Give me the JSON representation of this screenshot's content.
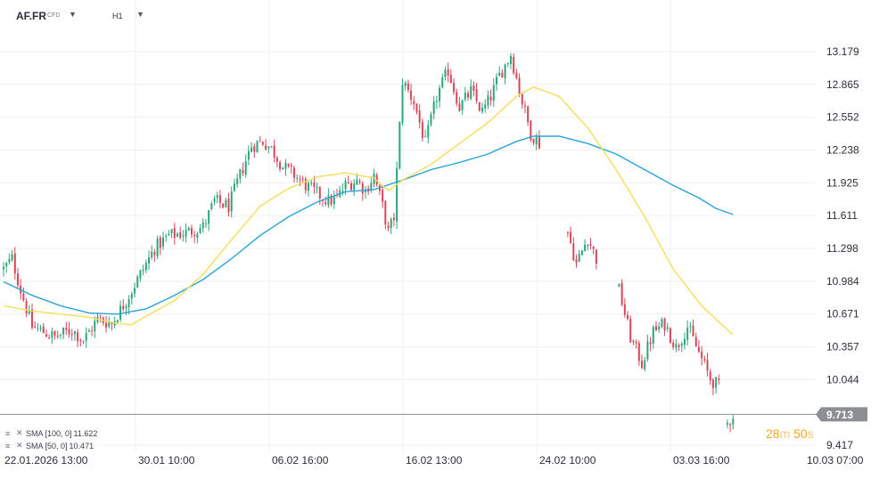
{
  "header": {
    "symbol": "AF.FR",
    "symbol_type": "CFD",
    "timeframe": "H1"
  },
  "indicators": [
    {
      "label": "SMA",
      "params": "[100, 0]",
      "value": "11.622",
      "color": "#2aa4d8"
    },
    {
      "label": "SMA",
      "params": "[50, 0]",
      "value": "10.471",
      "color": "#f5df5a"
    }
  ],
  "countdown": {
    "minutes": "28",
    "m": "m",
    "seconds": "50",
    "s": "s",
    "color": "#f5a623"
  },
  "price_label": {
    "value": "9.713",
    "color": "#8b8f94"
  },
  "colors": {
    "bull": "#2aa77a",
    "bear": "#d9465a",
    "grid": "#eef0f3",
    "axis_text": "#2a2f3a"
  },
  "chart_data": {
    "type": "candlestick",
    "y_ticks": [
      "13.179",
      "12.865",
      "12.552",
      "12.238",
      "11.925",
      "11.611",
      "11.298",
      "10.984",
      "10.671",
      "10.357",
      "10.044",
      "9.417"
    ],
    "x_ticks": [
      "22.01.2026  13:00",
      "30.01  10:00",
      "06.02  16:00",
      "16.02  13:00",
      "24.02  10:00",
      "03.03  16:00",
      "10.03  07:00"
    ],
    "ylim": [
      9.35,
      13.45
    ],
    "current_price": 9.713,
    "grid": true,
    "anchors": [
      {
        "i": 0,
        "p": 11.1
      },
      {
        "i": 3,
        "p": 11.2
      },
      {
        "i": 6,
        "p": 10.9
      },
      {
        "i": 10,
        "p": 10.55
      },
      {
        "i": 18,
        "p": 10.45
      },
      {
        "i": 24,
        "p": 10.52
      },
      {
        "i": 28,
        "p": 10.42
      },
      {
        "i": 33,
        "p": 10.62
      },
      {
        "i": 38,
        "p": 10.58
      },
      {
        "i": 43,
        "p": 10.8
      },
      {
        "i": 48,
        "p": 11.05
      },
      {
        "i": 53,
        "p": 11.3
      },
      {
        "i": 58,
        "p": 11.42
      },
      {
        "i": 64,
        "p": 11.45
      },
      {
        "i": 70,
        "p": 11.5
      },
      {
        "i": 74,
        "p": 11.75
      },
      {
        "i": 79,
        "p": 11.7
      },
      {
        "i": 83,
        "p": 12.0
      },
      {
        "i": 87,
        "p": 12.28
      },
      {
        "i": 91,
        "p": 12.32
      },
      {
        "i": 94,
        "p": 12.25
      },
      {
        "i": 98,
        "p": 12.08
      },
      {
        "i": 102,
        "p": 12.0
      },
      {
        "i": 106,
        "p": 11.9
      },
      {
        "i": 110,
        "p": 11.82
      },
      {
        "i": 114,
        "p": 11.75
      },
      {
        "i": 117,
        "p": 11.78
      },
      {
        "i": 120,
        "p": 11.9
      },
      {
        "i": 124,
        "p": 11.95
      },
      {
        "i": 127,
        "p": 11.85
      },
      {
        "i": 130,
        "p": 12.0
      },
      {
        "i": 133,
        "p": 11.7
      },
      {
        "i": 135,
        "p": 11.45
      },
      {
        "i": 137,
        "p": 11.6
      },
      {
        "i": 140,
        "p": 12.9
      },
      {
        "i": 144,
        "p": 12.7
      },
      {
        "i": 148,
        "p": 12.3
      },
      {
        "i": 152,
        "p": 12.75
      },
      {
        "i": 156,
        "p": 13.0
      },
      {
        "i": 160,
        "p": 12.65
      },
      {
        "i": 164,
        "p": 12.8
      },
      {
        "i": 168,
        "p": 12.6
      },
      {
        "i": 171,
        "p": 12.75
      },
      {
        "i": 174,
        "p": 12.95
      },
      {
        "i": 178,
        "p": 13.15
      },
      {
        "i": 182,
        "p": 12.7
      },
      {
        "i": 185,
        "p": 12.4
      },
      {
        "i": 188,
        "p": 12.3
      }
    ],
    "gap_anchors": [
      [
        {
          "i": 198,
          "p": 11.45
        },
        {
          "i": 201,
          "p": 11.15
        },
        {
          "i": 205,
          "p": 11.4
        },
        {
          "i": 208,
          "p": 11.2
        }
      ],
      [
        {
          "i": 216,
          "p": 10.9
        },
        {
          "i": 220,
          "p": 10.45
        },
        {
          "i": 224,
          "p": 10.2
        },
        {
          "i": 228,
          "p": 10.5
        },
        {
          "i": 232,
          "p": 10.58
        },
        {
          "i": 236,
          "p": 10.35
        },
        {
          "i": 240,
          "p": 10.55
        },
        {
          "i": 244,
          "p": 10.3
        },
        {
          "i": 248,
          "p": 10.05
        },
        {
          "i": 251,
          "p": 9.98
        }
      ],
      [
        {
          "i": 254,
          "p": 9.62
        },
        {
          "i": 256,
          "p": 9.713
        }
      ]
    ],
    "series": [
      {
        "name": "SMA [100, 0]",
        "color": "#2aa4d8",
        "points": [
          [
            0,
            10.98
          ],
          [
            10,
            10.85
          ],
          [
            20,
            10.75
          ],
          [
            30,
            10.68
          ],
          [
            40,
            10.67
          ],
          [
            50,
            10.72
          ],
          [
            60,
            10.85
          ],
          [
            70,
            11.0
          ],
          [
            80,
            11.2
          ],
          [
            90,
            11.42
          ],
          [
            100,
            11.6
          ],
          [
            110,
            11.74
          ],
          [
            120,
            11.84
          ],
          [
            130,
            11.86
          ],
          [
            140,
            11.95
          ],
          [
            150,
            12.05
          ],
          [
            160,
            12.12
          ],
          [
            170,
            12.2
          ],
          [
            180,
            12.32
          ],
          [
            186,
            12.37
          ],
          [
            195,
            12.37
          ],
          [
            205,
            12.3
          ],
          [
            215,
            12.2
          ],
          [
            225,
            12.05
          ],
          [
            235,
            11.9
          ],
          [
            244,
            11.78
          ],
          [
            250,
            11.68
          ],
          [
            256,
            11.622
          ]
        ]
      },
      {
        "name": "SMA [50, 0]",
        "color": "#f5df5a",
        "points": [
          [
            0,
            10.75
          ],
          [
            10,
            10.7
          ],
          [
            20,
            10.67
          ],
          [
            30,
            10.64
          ],
          [
            40,
            10.58
          ],
          [
            45,
            10.57
          ],
          [
            50,
            10.65
          ],
          [
            60,
            10.8
          ],
          [
            70,
            11.05
          ],
          [
            80,
            11.38
          ],
          [
            90,
            11.7
          ],
          [
            100,
            11.87
          ],
          [
            110,
            11.98
          ],
          [
            120,
            12.02
          ],
          [
            130,
            11.97
          ],
          [
            135,
            11.85
          ],
          [
            140,
            11.95
          ],
          [
            150,
            12.1
          ],
          [
            160,
            12.3
          ],
          [
            170,
            12.5
          ],
          [
            180,
            12.75
          ],
          [
            186,
            12.84
          ],
          [
            195,
            12.75
          ],
          [
            205,
            12.45
          ],
          [
            215,
            12.05
          ],
          [
            225,
            11.6
          ],
          [
            235,
            11.1
          ],
          [
            245,
            10.75
          ],
          [
            256,
            10.471
          ]
        ]
      }
    ]
  }
}
